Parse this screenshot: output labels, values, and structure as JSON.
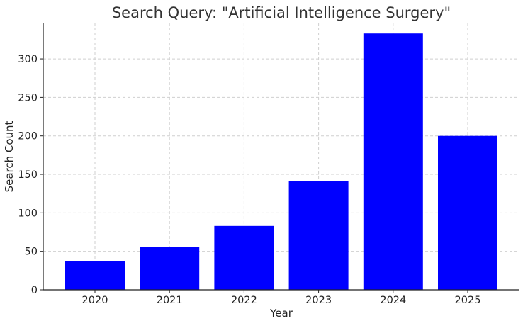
{
  "chart_data": {
    "type": "bar",
    "title": "Search Query: \"Artificial Intelligence Surgery\"",
    "xlabel": "Year",
    "ylabel": "Search Count",
    "categories": [
      "2020",
      "2021",
      "2022",
      "2023",
      "2024",
      "2025"
    ],
    "values": [
      37,
      56,
      83,
      141,
      333,
      200
    ],
    "ylim": [
      0,
      347
    ],
    "yticks": [
      0,
      50,
      100,
      150,
      200,
      250,
      300
    ],
    "grid": true,
    "bar_color": "#0000ff"
  }
}
